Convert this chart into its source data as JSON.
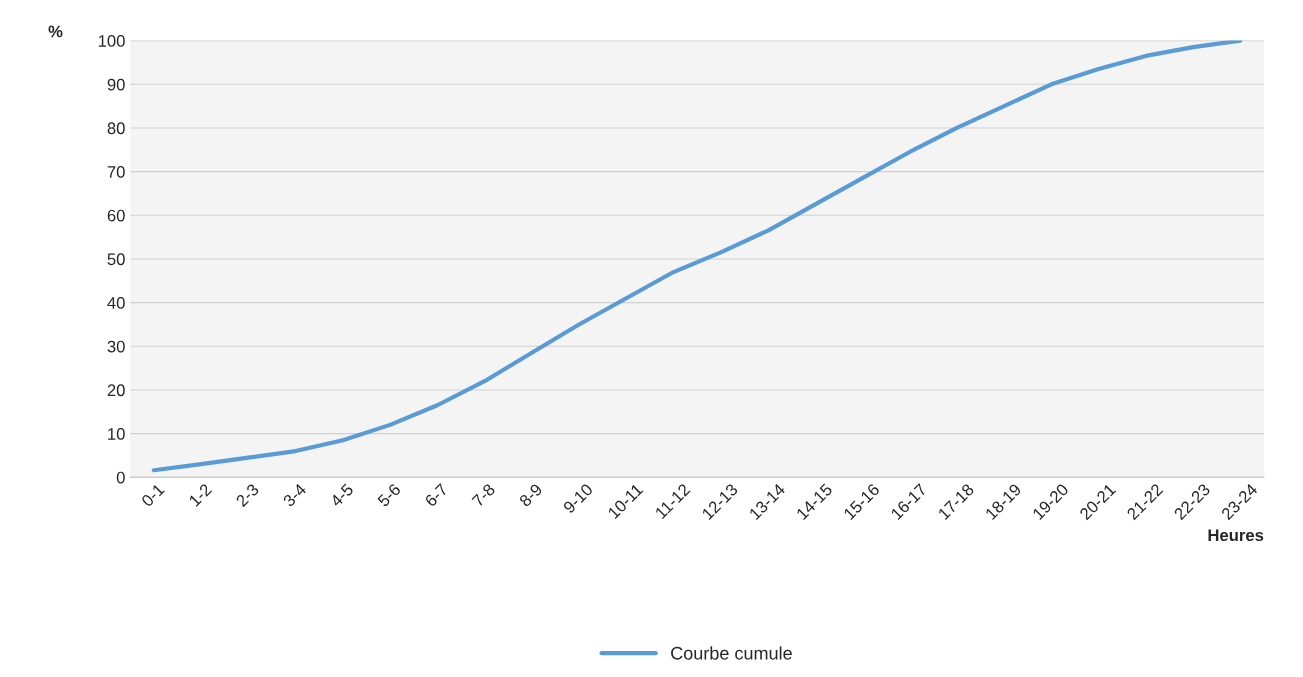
{
  "chart_data": {
    "type": "line",
    "categories": [
      "0-1",
      "1-2",
      "2-3",
      "3-4",
      "4-5",
      "5-6",
      "6-7",
      "7-8",
      "8-9",
      "9-10",
      "10-11",
      "11-12",
      "12-13",
      "13-14",
      "14-15",
      "15-16",
      "16-17",
      "17-18",
      "18-19",
      "19-20",
      "20-21",
      "21-22",
      "22-23",
      "23-24"
    ],
    "series": [
      {
        "name": "Courbe cumule",
        "color": "#5b9bd5",
        "values": [
          1.6,
          3,
          4.5,
          6,
          8.5,
          12,
          16.5,
          22,
          28.5,
          35,
          41,
          47,
          51.5,
          56.5,
          62.5,
          68.5,
          74.5,
          80,
          85,
          90,
          93.5,
          96.5,
          98.5,
          100
        ]
      }
    ],
    "xlabel": "Heures",
    "ylabel": "%",
    "ylim": [
      0,
      100
    ],
    "yticks": [
      0,
      10,
      20,
      30,
      40,
      50,
      60,
      70,
      80,
      90,
      100
    ],
    "grid": "y",
    "legend": "bottom",
    "marker": "none",
    "line_style": "solid"
  }
}
